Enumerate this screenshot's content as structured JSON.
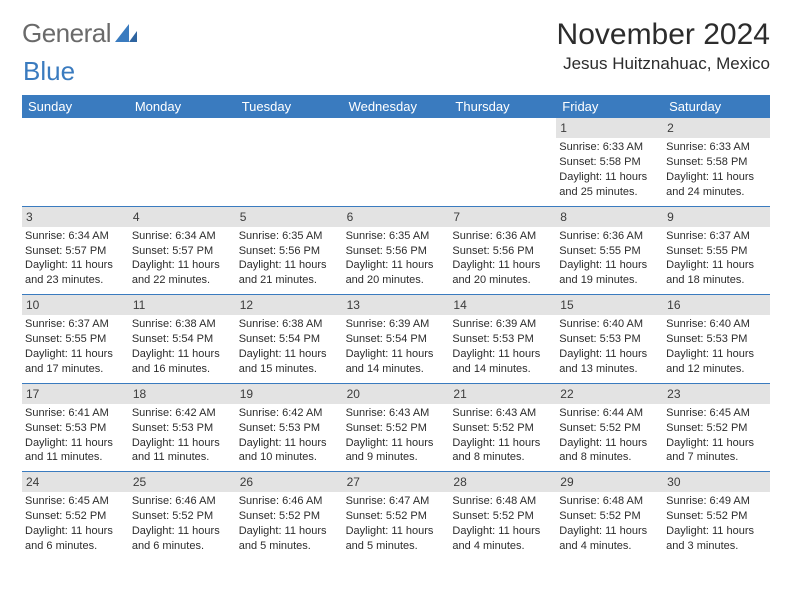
{
  "logo": {
    "text1": "General",
    "text2": "Blue"
  },
  "colors": {
    "accent": "#3a7bbf",
    "dayband": "#e3e3e3",
    "text": "#2c2c2c",
    "logogray": "#6a6a6a"
  },
  "title": "November 2024",
  "location": "Jesus Huitznahuac, Mexico",
  "weekdays": [
    "Sunday",
    "Monday",
    "Tuesday",
    "Wednesday",
    "Thursday",
    "Friday",
    "Saturday"
  ],
  "weeks": [
    [
      {
        "blank": true
      },
      {
        "blank": true
      },
      {
        "blank": true
      },
      {
        "blank": true
      },
      {
        "blank": true
      },
      {
        "day": "1",
        "sunrise": "Sunrise: 6:33 AM",
        "sunset": "Sunset: 5:58 PM",
        "daylight": "Daylight: 11 hours and 25 minutes."
      },
      {
        "day": "2",
        "sunrise": "Sunrise: 6:33 AM",
        "sunset": "Sunset: 5:58 PM",
        "daylight": "Daylight: 11 hours and 24 minutes."
      }
    ],
    [
      {
        "day": "3",
        "sunrise": "Sunrise: 6:34 AM",
        "sunset": "Sunset: 5:57 PM",
        "daylight": "Daylight: 11 hours and 23 minutes."
      },
      {
        "day": "4",
        "sunrise": "Sunrise: 6:34 AM",
        "sunset": "Sunset: 5:57 PM",
        "daylight": "Daylight: 11 hours and 22 minutes."
      },
      {
        "day": "5",
        "sunrise": "Sunrise: 6:35 AM",
        "sunset": "Sunset: 5:56 PM",
        "daylight": "Daylight: 11 hours and 21 minutes."
      },
      {
        "day": "6",
        "sunrise": "Sunrise: 6:35 AM",
        "sunset": "Sunset: 5:56 PM",
        "daylight": "Daylight: 11 hours and 20 minutes."
      },
      {
        "day": "7",
        "sunrise": "Sunrise: 6:36 AM",
        "sunset": "Sunset: 5:56 PM",
        "daylight": "Daylight: 11 hours and 20 minutes."
      },
      {
        "day": "8",
        "sunrise": "Sunrise: 6:36 AM",
        "sunset": "Sunset: 5:55 PM",
        "daylight": "Daylight: 11 hours and 19 minutes."
      },
      {
        "day": "9",
        "sunrise": "Sunrise: 6:37 AM",
        "sunset": "Sunset: 5:55 PM",
        "daylight": "Daylight: 11 hours and 18 minutes."
      }
    ],
    [
      {
        "day": "10",
        "sunrise": "Sunrise: 6:37 AM",
        "sunset": "Sunset: 5:55 PM",
        "daylight": "Daylight: 11 hours and 17 minutes."
      },
      {
        "day": "11",
        "sunrise": "Sunrise: 6:38 AM",
        "sunset": "Sunset: 5:54 PM",
        "daylight": "Daylight: 11 hours and 16 minutes."
      },
      {
        "day": "12",
        "sunrise": "Sunrise: 6:38 AM",
        "sunset": "Sunset: 5:54 PM",
        "daylight": "Daylight: 11 hours and 15 minutes."
      },
      {
        "day": "13",
        "sunrise": "Sunrise: 6:39 AM",
        "sunset": "Sunset: 5:54 PM",
        "daylight": "Daylight: 11 hours and 14 minutes."
      },
      {
        "day": "14",
        "sunrise": "Sunrise: 6:39 AM",
        "sunset": "Sunset: 5:53 PM",
        "daylight": "Daylight: 11 hours and 14 minutes."
      },
      {
        "day": "15",
        "sunrise": "Sunrise: 6:40 AM",
        "sunset": "Sunset: 5:53 PM",
        "daylight": "Daylight: 11 hours and 13 minutes."
      },
      {
        "day": "16",
        "sunrise": "Sunrise: 6:40 AM",
        "sunset": "Sunset: 5:53 PM",
        "daylight": "Daylight: 11 hours and 12 minutes."
      }
    ],
    [
      {
        "day": "17",
        "sunrise": "Sunrise: 6:41 AM",
        "sunset": "Sunset: 5:53 PM",
        "daylight": "Daylight: 11 hours and 11 minutes."
      },
      {
        "day": "18",
        "sunrise": "Sunrise: 6:42 AM",
        "sunset": "Sunset: 5:53 PM",
        "daylight": "Daylight: 11 hours and 11 minutes."
      },
      {
        "day": "19",
        "sunrise": "Sunrise: 6:42 AM",
        "sunset": "Sunset: 5:53 PM",
        "daylight": "Daylight: 11 hours and 10 minutes."
      },
      {
        "day": "20",
        "sunrise": "Sunrise: 6:43 AM",
        "sunset": "Sunset: 5:52 PM",
        "daylight": "Daylight: 11 hours and 9 minutes."
      },
      {
        "day": "21",
        "sunrise": "Sunrise: 6:43 AM",
        "sunset": "Sunset: 5:52 PM",
        "daylight": "Daylight: 11 hours and 8 minutes."
      },
      {
        "day": "22",
        "sunrise": "Sunrise: 6:44 AM",
        "sunset": "Sunset: 5:52 PM",
        "daylight": "Daylight: 11 hours and 8 minutes."
      },
      {
        "day": "23",
        "sunrise": "Sunrise: 6:45 AM",
        "sunset": "Sunset: 5:52 PM",
        "daylight": "Daylight: 11 hours and 7 minutes."
      }
    ],
    [
      {
        "day": "24",
        "sunrise": "Sunrise: 6:45 AM",
        "sunset": "Sunset: 5:52 PM",
        "daylight": "Daylight: 11 hours and 6 minutes."
      },
      {
        "day": "25",
        "sunrise": "Sunrise: 6:46 AM",
        "sunset": "Sunset: 5:52 PM",
        "daylight": "Daylight: 11 hours and 6 minutes."
      },
      {
        "day": "26",
        "sunrise": "Sunrise: 6:46 AM",
        "sunset": "Sunset: 5:52 PM",
        "daylight": "Daylight: 11 hours and 5 minutes."
      },
      {
        "day": "27",
        "sunrise": "Sunrise: 6:47 AM",
        "sunset": "Sunset: 5:52 PM",
        "daylight": "Daylight: 11 hours and 5 minutes."
      },
      {
        "day": "28",
        "sunrise": "Sunrise: 6:48 AM",
        "sunset": "Sunset: 5:52 PM",
        "daylight": "Daylight: 11 hours and 4 minutes."
      },
      {
        "day": "29",
        "sunrise": "Sunrise: 6:48 AM",
        "sunset": "Sunset: 5:52 PM",
        "daylight": "Daylight: 11 hours and 4 minutes."
      },
      {
        "day": "30",
        "sunrise": "Sunrise: 6:49 AM",
        "sunset": "Sunset: 5:52 PM",
        "daylight": "Daylight: 11 hours and 3 minutes."
      }
    ]
  ]
}
